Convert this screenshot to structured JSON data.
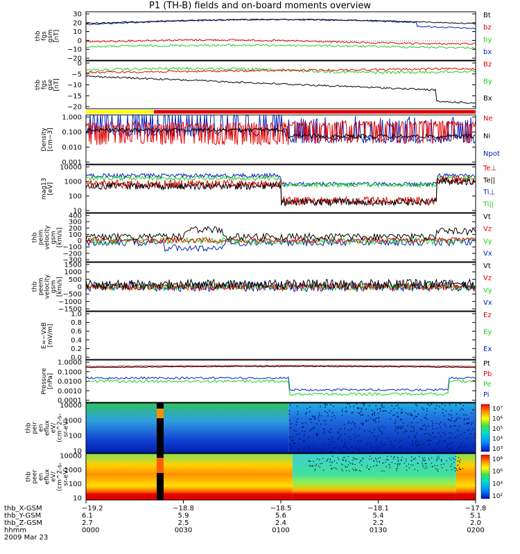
{
  "title": "P1 (TH-B) fields and on-board moments overview",
  "date_label": "2009 Mar 23",
  "colors": {
    "black": "#000000",
    "red": "#e00000",
    "green": "#20d020",
    "blue": "#0020c0",
    "yellow": "#ffff00"
  },
  "chart_data": [
    {
      "type": "line",
      "ylabel": [
        "thb",
        "fgs",
        "gsm",
        "[nT]"
      ],
      "ylim": [
        -20,
        30
      ],
      "yticks": [
        "30",
        "20",
        "10",
        "0",
        "−10",
        "−20"
      ],
      "series": [
        {
          "name": "Bt",
          "color": "black",
          "base": 17
        },
        {
          "name": "bz",
          "color": "red",
          "base": -1
        },
        {
          "name": "by",
          "color": "green",
          "base": -6
        },
        {
          "name": "bx",
          "color": "blue",
          "base": 15
        }
      ]
    },
    {
      "type": "line",
      "ylabel": [
        "thb",
        "fgs",
        "gse",
        "[nT]"
      ],
      "ylim": [
        -22,
        3
      ],
      "yticks": [
        "0",
        "−5",
        "−10",
        "−15",
        "−20"
      ],
      "series": [
        {
          "name": "Bz",
          "color": "red",
          "base": -3
        },
        {
          "name": "By",
          "color": "green",
          "base": -2
        },
        {
          "name": "Bx",
          "color": "black",
          "base": -8
        }
      ]
    },
    {
      "type": "line",
      "ylabel": [
        "Density",
        "[cm−3]"
      ],
      "yscale": "log",
      "yticks": [
        "1.000",
        "0.100",
        "0.010",
        "0.001"
      ],
      "series": [
        {
          "name": "Ne",
          "color": "red"
        },
        {
          "name": "Ni",
          "color": "black"
        },
        {
          "name": "Npot",
          "color": "blue"
        }
      ]
    },
    {
      "type": "line",
      "ylabel": [
        "mag13",
        "[eV]"
      ],
      "yscale": "log",
      "yticks": [
        "10000",
        "1000",
        "100",
        "10"
      ],
      "series": [
        {
          "name": "Te⊥",
          "color": "red"
        },
        {
          "name": "Te||",
          "color": "black"
        },
        {
          "name": "Ti⊥",
          "color": "blue"
        },
        {
          "name": "Ti||",
          "color": "green"
        }
      ]
    },
    {
      "type": "line",
      "ylabel": [
        "thb",
        "peim",
        "velocity",
        "gsm",
        "[km/s]"
      ],
      "ylim": [
        -300,
        400
      ],
      "yticks": [
        "400",
        "300",
        "200",
        "100",
        "0",
        "−100",
        "−200",
        "−300"
      ],
      "series": [
        {
          "name": "Vt",
          "color": "black"
        },
        {
          "name": "Vz",
          "color": "red"
        },
        {
          "name": "Vy",
          "color": "green"
        },
        {
          "name": "Vx",
          "color": "blue"
        }
      ]
    },
    {
      "type": "line",
      "ylabel": [
        "thb",
        "peem",
        "velocity",
        "gsm",
        "[km/s]"
      ],
      "ylim": [
        -1500,
        1500
      ],
      "yticks": [
        "1500",
        "1000",
        "500",
        "0",
        "−500",
        "−1000",
        "−1500"
      ],
      "series": [
        {
          "name": "Vt",
          "color": "black"
        },
        {
          "name": "Vz",
          "color": "red"
        },
        {
          "name": "Vy",
          "color": "green"
        },
        {
          "name": "Vx",
          "color": "blue"
        }
      ]
    },
    {
      "type": "line",
      "ylabel": [
        "E=−VxB",
        "[mV/m]"
      ],
      "ylim": [
        0,
        1
      ],
      "yticks": [
        "1.0",
        "0.8",
        "0.6",
        "0.4",
        "0.2",
        "0.0"
      ],
      "series": [
        {
          "name": "Ez",
          "color": "red"
        },
        {
          "name": "Ey",
          "color": "green"
        },
        {
          "name": "Ex",
          "color": "blue"
        }
      ]
    },
    {
      "type": "line",
      "ylabel": [
        "Pressure",
        "[nPa]"
      ],
      "yscale": "log",
      "yticks": [
        "1.0000",
        "0.1000",
        "0.0100",
        "0.0010",
        "0.0001"
      ],
      "series": [
        {
          "name": "Pt",
          "color": "black"
        },
        {
          "name": "Pb",
          "color": "red"
        },
        {
          "name": "Pe",
          "color": "green"
        },
        {
          "name": "Pi",
          "color": "blue"
        }
      ]
    },
    {
      "type": "heatmap",
      "ylabel": [
        "thb",
        "peir",
        "en",
        "eflux",
        "eV/",
        "(cm^2-s-",
        "sr-eV)"
      ],
      "yscale": "log",
      "yticks": [
        "10000",
        "1000",
        "100",
        "10"
      ],
      "colorbar": [
        "10⁷",
        "10⁶",
        "10⁵",
        "10⁴",
        "10³"
      ]
    },
    {
      "type": "heatmap",
      "ylabel": [
        "thb",
        "peer",
        "en",
        "eflux",
        "eV/",
        "(cm^2-s-",
        "sr-eV)"
      ],
      "yscale": "log",
      "yticks": [
        "10000",
        "1000",
        "100",
        "10"
      ],
      "colorbar": [
        "10⁸",
        "10⁶",
        "10⁴",
        "10²"
      ]
    }
  ],
  "x_axis": {
    "rows": [
      {
        "label": "thb_X-GSM",
        "values": [
          "−19.2",
          "−18.8",
          "−18.5",
          "−18.1",
          "−17.8"
        ]
      },
      {
        "label": "thb_Y-GSM",
        "values": [
          "6.1",
          "5.9",
          "5.6",
          "5.4",
          "5.1"
        ]
      },
      {
        "label": "thb_Z-GSM",
        "values": [
          "2.7",
          "2.5",
          "2.4",
          "2.2",
          "2.0"
        ]
      },
      {
        "label": "hhmm",
        "values": [
          "0000",
          "0030",
          "0100",
          "0130",
          "0200"
        ]
      }
    ]
  }
}
